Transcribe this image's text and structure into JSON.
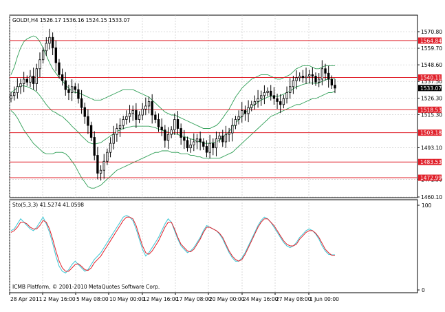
{
  "window": {
    "header": "GOLD!,H4  1526.17 1536.16 1524.15 1533.07",
    "indicator_label": "Sto(5,3,3) 41.5274 41.0598",
    "footer": "ICMB Platform, © 2001-2010 MetaQuotes Software Corp.",
    "current_price_label": "1533.07"
  },
  "colors": {
    "background": "#ffffff",
    "frame": "#000000",
    "grid": "#c0c0c0",
    "candle": "#000000",
    "bollinger": "#2e9e55",
    "level_line": "#e0202a",
    "level_label_bg": "#e0202a",
    "stoch_main": "#39c6d4",
    "stoch_signal": "#e0202a"
  },
  "chart_data": [
    {
      "type": "candlestick",
      "symbol": "GOLD!",
      "timeframe": "H4",
      "ylim": [
        1460.1,
        1570.8
      ],
      "y_ticks": [
        "1570.80",
        "1559.70",
        "1548.60",
        "1537.50",
        "1526.30",
        "1515.30",
        "1493.10",
        "1471.90",
        "1460.10"
      ],
      "x_ticks": [
        "28 Apr 2011",
        "2 May 16:00",
        "5 May 08:00",
        "10 May 00:00",
        "12 May 16:00",
        "17 May 08:00",
        "20 May 00:00",
        "24 May 16:00",
        "27 May 08:00",
        "1 Jun 00:00"
      ],
      "current_price": 1533.07,
      "levels": [
        {
          "value": 1564.84,
          "label": "1564.84"
        },
        {
          "value": 1540.11,
          "label": "1540.11"
        },
        {
          "value": 1518.53,
          "label": "1518.53"
        },
        {
          "value": 1503.18,
          "label": "1503.18"
        },
        {
          "value": 1483.53,
          "label": "1483.53"
        },
        {
          "value": 1472.99,
          "label": "1472.99"
        }
      ],
      "close": [
        1528,
        1530,
        1534,
        1536,
        1539,
        1537,
        1541,
        1536,
        1546,
        1552,
        1558,
        1563,
        1567,
        1560,
        1550,
        1542,
        1538,
        1532,
        1530,
        1534,
        1532,
        1526,
        1520,
        1514,
        1508,
        1500,
        1488,
        1476,
        1478,
        1484,
        1490,
        1496,
        1502,
        1506,
        1508,
        1512,
        1514,
        1516,
        1518,
        1512,
        1515,
        1519,
        1521,
        1524,
        1515,
        1512,
        1507,
        1505,
        1498,
        1502,
        1505,
        1512,
        1506,
        1500,
        1498,
        1493,
        1495,
        1497,
        1499,
        1497,
        1494,
        1490,
        1496,
        1493,
        1499,
        1501,
        1497,
        1502,
        1503,
        1508,
        1512,
        1514,
        1518,
        1516,
        1520,
        1522,
        1524,
        1526,
        1528,
        1530,
        1531,
        1528,
        1526,
        1524,
        1522,
        1526,
        1530,
        1534,
        1538,
        1540,
        1541,
        1540,
        1541,
        1542,
        1541,
        1537,
        1539,
        1546,
        1543,
        1539,
        1535,
        1533
      ],
      "bollinger_upper": [
        1542,
        1547,
        1554,
        1560,
        1564,
        1566,
        1567,
        1568,
        1567,
        1564,
        1560,
        1555,
        1550,
        1546,
        1543,
        1540,
        1538,
        1535,
        1533,
        1531,
        1530,
        1530,
        1529,
        1528,
        1527,
        1526,
        1525,
        1525,
        1525,
        1526,
        1527,
        1528,
        1529,
        1530,
        1531,
        1532,
        1532,
        1532,
        1532,
        1531,
        1530,
        1529,
        1528,
        1527,
        1525,
        1523,
        1521,
        1519,
        1517,
        1516,
        1515,
        1515,
        1514,
        1513,
        1512,
        1511,
        1510,
        1509,
        1508,
        1507,
        1506,
        1506,
        1506,
        1507,
        1508,
        1510,
        1513,
        1516,
        1519,
        1523,
        1527,
        1530,
        1533,
        1535,
        1537,
        1539,
        1540,
        1541,
        1542,
        1542,
        1542,
        1541,
        1540,
        1539,
        1539,
        1540,
        1541,
        1542,
        1544,
        1546,
        1547,
        1548,
        1548,
        1548,
        1547,
        1546,
        1546,
        1547,
        1548,
        1548,
        1548,
        1548
      ],
      "bollinger_lower": [
        1518,
        1516,
        1513,
        1509,
        1505,
        1502,
        1499,
        1496,
        1494,
        1492,
        1490,
        1489,
        1489,
        1489,
        1490,
        1490,
        1490,
        1489,
        1487,
        1484,
        1481,
        1477,
        1473,
        1470,
        1467,
        1466,
        1466,
        1467,
        1468,
        1470,
        1472,
        1474,
        1476,
        1478,
        1479,
        1480,
        1481,
        1482,
        1483,
        1484,
        1485,
        1486,
        1487,
        1488,
        1489,
        1490,
        1490,
        1491,
        1491,
        1491,
        1490,
        1490,
        1490,
        1489,
        1489,
        1489,
        1488,
        1488,
        1487,
        1487,
        1486,
        1486,
        1486,
        1486,
        1486,
        1486,
        1487,
        1488,
        1489,
        1490,
        1492,
        1494,
        1496,
        1498,
        1500,
        1502,
        1504,
        1506,
        1508,
        1510,
        1512,
        1514,
        1515,
        1516,
        1517,
        1518,
        1519,
        1520,
        1521,
        1522,
        1522,
        1523,
        1524,
        1525,
        1526,
        1526,
        1527,
        1528,
        1529,
        1530,
        1530,
        1531
      ]
    },
    {
      "type": "line",
      "title": "Sto(5,3,3) 41.5274 41.0598",
      "ylim": [
        0,
        100
      ],
      "y_ticks": [
        "100",
        "0"
      ],
      "series": [
        {
          "name": "main",
          "values": [
            70,
            72,
            78,
            84,
            80,
            76,
            72,
            70,
            74,
            80,
            86,
            78,
            68,
            55,
            40,
            28,
            22,
            20,
            24,
            30,
            34,
            30,
            26,
            22,
            24,
            30,
            36,
            40,
            44,
            50,
            56,
            62,
            68,
            74,
            80,
            86,
            88,
            86,
            82,
            72,
            60,
            48,
            40,
            44,
            50,
            56,
            62,
            70,
            78,
            84,
            80,
            70,
            60,
            52,
            48,
            44,
            46,
            50,
            56,
            62,
            70,
            76,
            74,
            72,
            70,
            66,
            60,
            52,
            44,
            38,
            34,
            34,
            38,
            44,
            52,
            60,
            68,
            76,
            82,
            86,
            84,
            80,
            74,
            68,
            62,
            56,
            52,
            50,
            52,
            56,
            62,
            66,
            70,
            72,
            70,
            66,
            60,
            52,
            46,
            42,
            41.5,
            41.5
          ]
        },
        {
          "name": "signal",
          "values": [
            68,
            70,
            74,
            80,
            80,
            78,
            74,
            72,
            72,
            76,
            82,
            80,
            72,
            60,
            46,
            34,
            26,
            22,
            22,
            26,
            30,
            31,
            28,
            24,
            23,
            26,
            32,
            36,
            40,
            46,
            52,
            58,
            64,
            70,
            76,
            82,
            86,
            86,
            84,
            76,
            64,
            52,
            44,
            42,
            46,
            52,
            58,
            66,
            74,
            80,
            80,
            72,
            62,
            54,
            50,
            46,
            45,
            48,
            54,
            60,
            68,
            74,
            74,
            72,
            70,
            67,
            62,
            54,
            46,
            40,
            36,
            34,
            36,
            42,
            50,
            58,
            66,
            74,
            80,
            84,
            84,
            80,
            76,
            70,
            64,
            58,
            54,
            52,
            52,
            54,
            60,
            64,
            68,
            70,
            70,
            67,
            62,
            55,
            48,
            44,
            41,
            41
          ]
        }
      ]
    }
  ]
}
